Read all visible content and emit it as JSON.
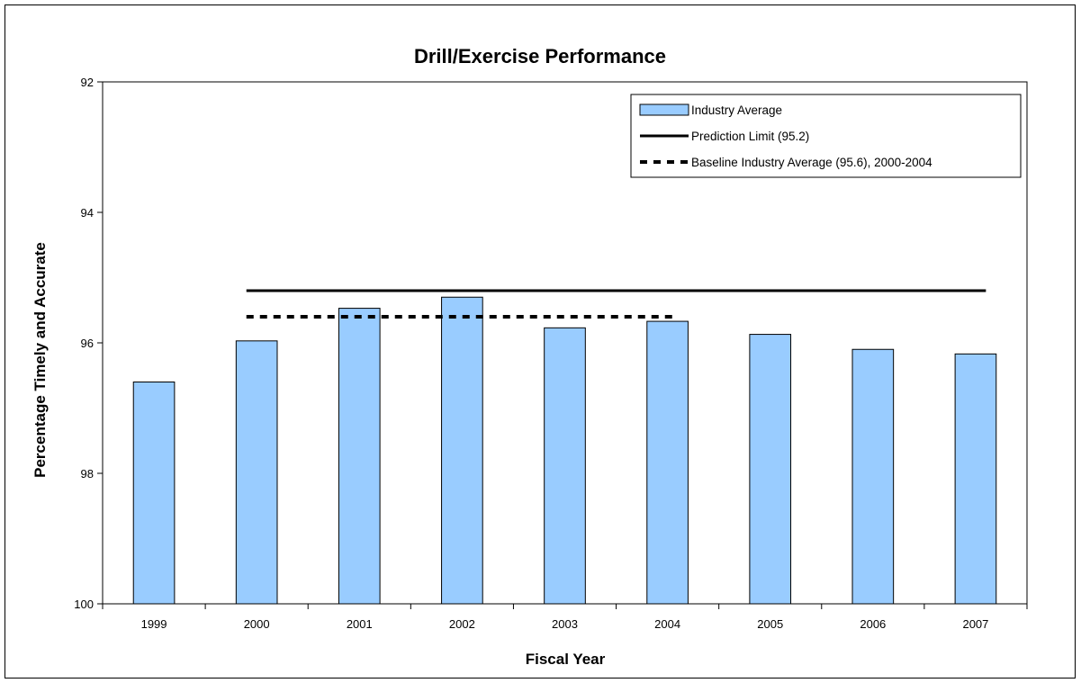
{
  "chart_data": {
    "type": "bar",
    "title": "Drill/Exercise Performance",
    "xlabel": "Fiscal Year",
    "ylabel": "Percentage Timely and Accurate",
    "ylim": [
      100,
      92
    ],
    "y_inverted": true,
    "yticks": [
      "92",
      "94",
      "96",
      "98",
      "100"
    ],
    "categories": [
      "1999",
      "2000",
      "2001",
      "2002",
      "2003",
      "2004",
      "2005",
      "2006",
      "2007"
    ],
    "series": [
      {
        "name": "Industry Average",
        "values": [
          96.6,
          95.97,
          95.47,
          95.3,
          95.77,
          95.67,
          95.87,
          96.1,
          96.17
        ]
      }
    ],
    "reference_lines": [
      {
        "name": "Prediction Limit (95.2)",
        "value": 95.2,
        "style": "solid",
        "from": "2000",
        "to": "2007"
      },
      {
        "name": "Baseline Industry Average (95.6), 2000-2004",
        "value": 95.6,
        "style": "dotted",
        "from": "2000",
        "to": "2004"
      }
    ],
    "legend_position": "top-right",
    "grid": false,
    "colors": {
      "bar_fill": "#99ccff",
      "bar_stroke": "#000000",
      "line": "#000000"
    }
  }
}
